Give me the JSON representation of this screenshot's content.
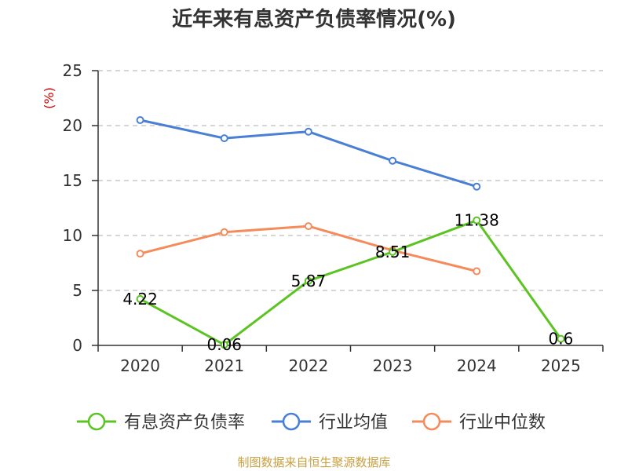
{
  "chart_data": {
    "type": "line",
    "title": "近年来有息资产负债率情况(%)",
    "y_unit": "(%)",
    "categories": [
      "2020",
      "2021",
      "2022",
      "2023",
      "2024",
      "2025"
    ],
    "ylim": [
      0,
      25
    ],
    "yticks": [
      0,
      5,
      10,
      15,
      20,
      25
    ],
    "grid": true,
    "legend_position": "bottom",
    "series": [
      {
        "name": "有息资产负债率",
        "color": "#5cc422",
        "values": [
          4.22,
          0.06,
          5.87,
          8.51,
          11.38,
          0.6
        ],
        "labels": [
          "4.22",
          "0.06",
          "5.87",
          "8.51",
          "11.38",
          "0.6"
        ]
      },
      {
        "name": "行业均值",
        "color": "#4a7fd6",
        "values": [
          20.5,
          18.85,
          19.45,
          16.8,
          14.45,
          null
        ]
      },
      {
        "name": "行业中位数",
        "color": "#f58a5a",
        "values": [
          8.35,
          10.3,
          10.85,
          8.65,
          6.75,
          null
        ]
      }
    ],
    "source": "制图数据来自恒生聚源数据库"
  }
}
